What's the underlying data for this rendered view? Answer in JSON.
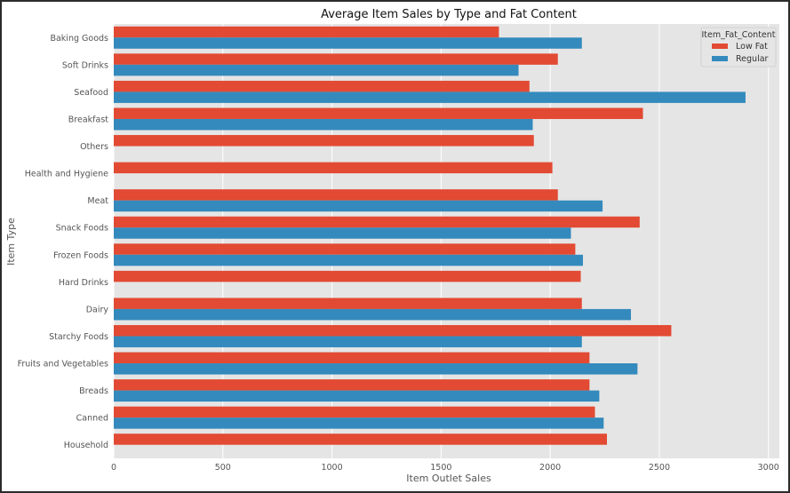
{
  "chart_data": {
    "type": "bar",
    "orientation": "horizontal",
    "title": "Average Item Sales by Type and Fat Content",
    "xlabel": "Item Outlet Sales",
    "ylabel": "Item Type",
    "xlim": [
      0,
      3050
    ],
    "xticks": [
      0,
      500,
      1000,
      1500,
      2000,
      2500,
      3000
    ],
    "grid": true,
    "legend_title": "Item_Fat_Content",
    "legend_position": "top-right",
    "categories": [
      "Baking Goods",
      "Soft Drinks",
      "Seafood",
      "Breakfast",
      "Others",
      "Health and Hygiene",
      "Meat",
      "Snack Foods",
      "Frozen Foods",
      "Hard Drinks",
      "Dairy",
      "Starchy Foods",
      "Fruits and Vegetables",
      "Breads",
      "Canned",
      "Household"
    ],
    "series": [
      {
        "name": "Low Fat",
        "color": "#E24A33",
        "values": [
          1765,
          2035,
          1905,
          2425,
          1925,
          2010,
          2035,
          2410,
          2115,
          2140,
          2145,
          2555,
          2180,
          2180,
          2205,
          2260
        ]
      },
      {
        "name": "Regular",
        "color": "#348ABD",
        "values": [
          2145,
          1855,
          2895,
          1920,
          null,
          null,
          2240,
          2095,
          2150,
          null,
          2370,
          2145,
          2400,
          2225,
          2245,
          null
        ]
      }
    ]
  }
}
